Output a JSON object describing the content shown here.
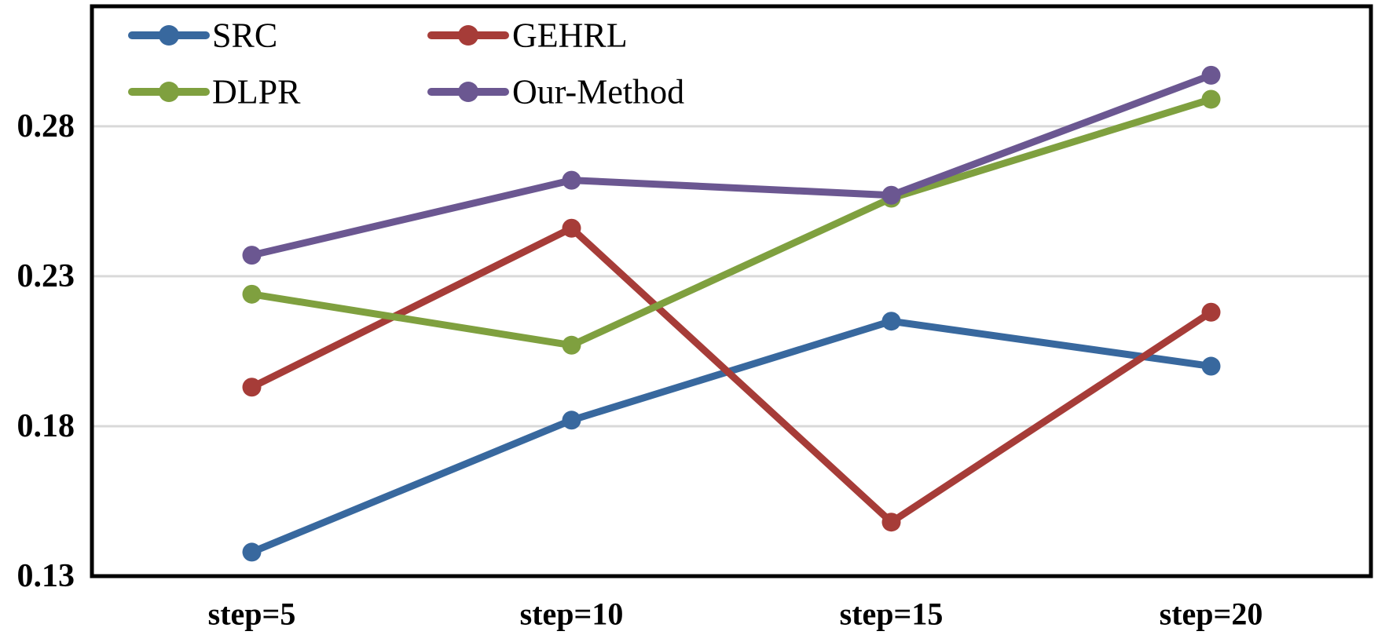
{
  "chart_data": {
    "type": "line",
    "title": "",
    "xlabel": "",
    "ylabel": "",
    "categories": [
      "step=5",
      "step=10",
      "step=15",
      "step=20"
    ],
    "series": [
      {
        "name": "SRC",
        "color": "#38689E",
        "values": [
          0.138,
          0.182,
          0.215,
          0.2
        ]
      },
      {
        "name": "GEHRL",
        "color": "#A63C38",
        "values": [
          0.193,
          0.246,
          0.148,
          0.218
        ]
      },
      {
        "name": "DLPR",
        "color": "#7FA03F",
        "values": [
          0.224,
          0.207,
          0.256,
          0.289
        ]
      },
      {
        "name": "Our-Method",
        "color": "#6B5791",
        "values": [
          0.237,
          0.262,
          0.257,
          0.297
        ]
      }
    ],
    "ylim": [
      0.13,
      0.32
    ],
    "yticks": [
      0.13,
      0.18,
      0.23,
      0.28
    ],
    "ytick_format_decimals": 2,
    "grid": true,
    "legend_position": "top-left-inside",
    "legend_rows": [
      [
        "SRC",
        "GEHRL"
      ],
      [
        "DLPR",
        "Our-Method"
      ]
    ]
  },
  "colors": {
    "background": "#FFFFFF",
    "gridline": "#D9D9D9",
    "frame": "#000000",
    "text": "#000000"
  }
}
